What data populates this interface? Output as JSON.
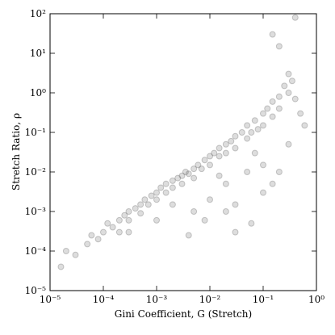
{
  "chart_data": {
    "type": "scatter",
    "x_label": "Gini Coefficient, G (Stretch)",
    "y_label": "Stretch Ratio, ρ",
    "xscale": "log",
    "yscale": "log",
    "xlim": [
      1e-05,
      1
    ],
    "ylim": [
      1e-05,
      100
    ],
    "xticks": [
      {
        "value": 1e-05,
        "label": "10⁻⁵"
      },
      {
        "value": 0.0001,
        "label": "10⁻⁴"
      },
      {
        "value": 0.001,
        "label": "10⁻³"
      },
      {
        "value": 0.01,
        "label": "10⁻²"
      },
      {
        "value": 0.1,
        "label": "10⁻¹"
      },
      {
        "value": 1,
        "label": "10⁰"
      }
    ],
    "yticks": [
      {
        "value": 1e-05,
        "label": "10⁻⁵"
      },
      {
        "value": 0.0001,
        "label": "10⁻⁴"
      },
      {
        "value": 0.001,
        "label": "10⁻³"
      },
      {
        "value": 0.01,
        "label": "10⁻²"
      },
      {
        "value": 0.1,
        "label": "10⁻¹"
      },
      {
        "value": 1,
        "label": "10⁰"
      },
      {
        "value": 10,
        "label": "10¹"
      },
      {
        "value": 100,
        "label": "10²"
      }
    ],
    "color": "#555555",
    "x": [
      1.6e-05,
      2e-05,
      3e-05,
      5e-05,
      6e-05,
      8e-05,
      0.0001,
      0.00012,
      0.00015,
      0.0002,
      0.0002,
      0.00025,
      0.0003,
      0.0003,
      0.0004,
      0.0005,
      0.0005,
      0.0006,
      0.0007,
      0.0008,
      0.001,
      0.001,
      0.0012,
      0.0015,
      0.0015,
      0.002,
      0.002,
      0.0025,
      0.003,
      0.003,
      0.0035,
      0.004,
      0.005,
      0.005,
      0.006,
      0.007,
      0.008,
      0.01,
      0.01,
      0.012,
      0.015,
      0.015,
      0.02,
      0.02,
      0.025,
      0.03,
      0.03,
      0.04,
      0.05,
      0.05,
      0.06,
      0.07,
      0.08,
      0.1,
      0.1,
      0.12,
      0.15,
      0.15,
      0.2,
      0.2,
      0.25,
      0.3,
      0.3,
      0.35,
      0.4,
      0.15,
      0.2,
      0.4,
      0.005,
      0.01,
      0.02,
      0.05,
      0.1,
      0.15,
      0.03,
      0.008,
      0.004,
      0.03,
      0.1,
      0.2,
      0.3,
      0.06,
      0.02,
      0.015,
      0.07,
      0.001,
      0.0003,
      0.002,
      0.5,
      0.6
    ],
    "values": [
      4e-05,
      0.0001,
      8e-05,
      0.00015,
      0.00025,
      0.0002,
      0.0003,
      0.0005,
      0.0004,
      0.0006,
      0.0003,
      0.0008,
      0.001,
      0.0006,
      0.0012,
      0.0015,
      0.0009,
      0.002,
      0.0015,
      0.0025,
      0.003,
      0.002,
      0.004,
      0.003,
      0.005,
      0.006,
      0.004,
      0.007,
      0.008,
      0.005,
      0.01,
      0.009,
      0.012,
      0.007,
      0.015,
      0.012,
      0.02,
      0.025,
      0.015,
      0.03,
      0.025,
      0.04,
      0.05,
      0.03,
      0.06,
      0.08,
      0.04,
      0.1,
      0.07,
      0.15,
      0.1,
      0.2,
      0.12,
      0.3,
      0.15,
      0.4,
      0.6,
      0.25,
      0.8,
      0.4,
      1.5,
      1,
      3,
      2,
      80,
      30,
      15,
      0.7,
      0.001,
      0.002,
      0.005,
      0.01,
      0.015,
      0.005,
      0.0015,
      0.0006,
      0.00025,
      0.0003,
      0.003,
      0.01,
      0.05,
      0.0005,
      0.001,
      0.008,
      0.03,
      0.0006,
      0.0003,
      0.0015,
      0.3,
      0.15
    ]
  }
}
